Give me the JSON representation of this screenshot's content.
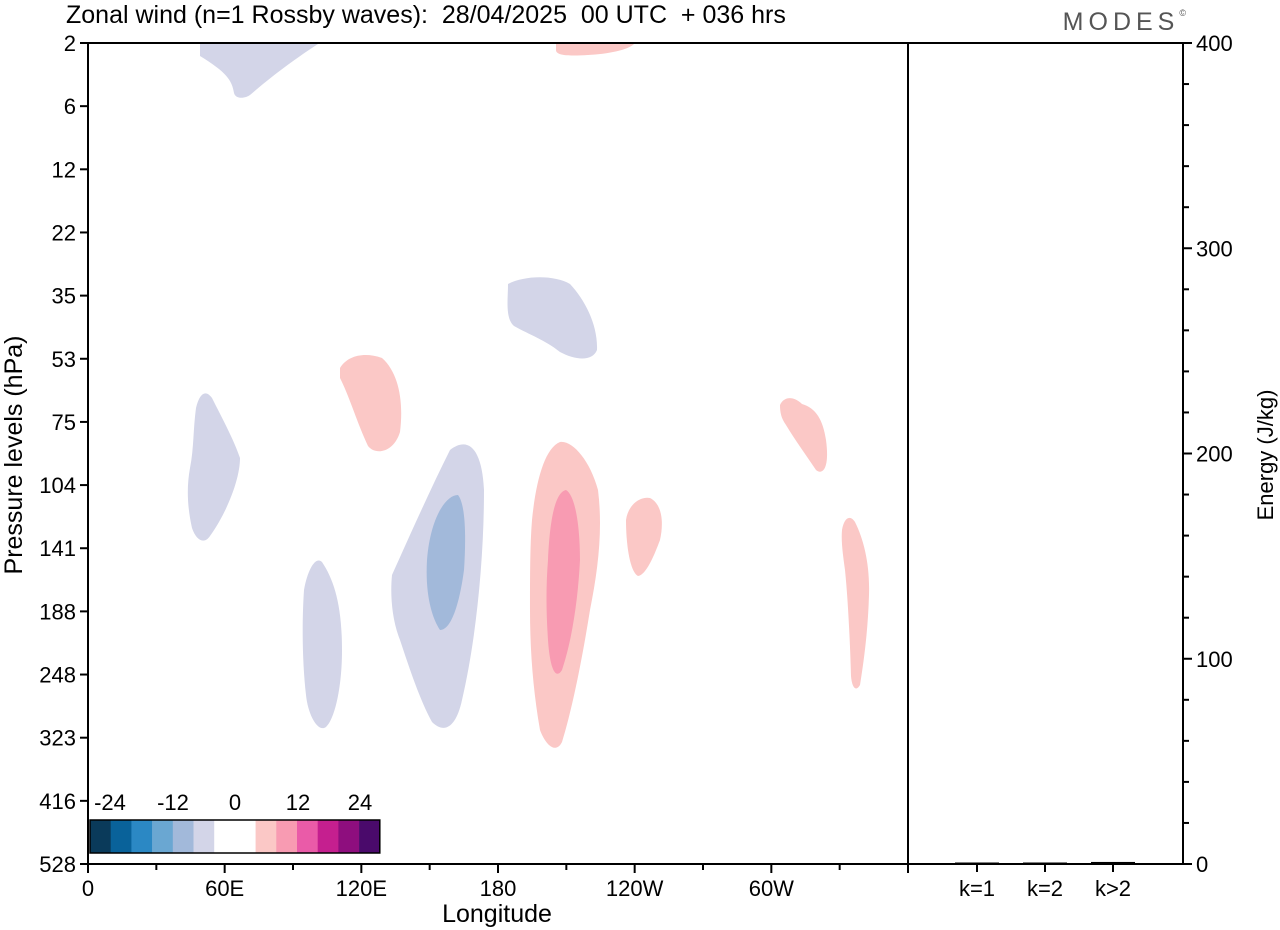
{
  "title": "Zonal wind (n=1 Rossby waves):  28/04/2025  00 UTC  + 036 hrs",
  "brand": "MODES",
  "chart_data": {
    "type": "heatmap",
    "xlabel": "Longitude",
    "ylabel": "Pressure levels (hPa)",
    "x_ticks": [
      "0",
      "60E",
      "120E",
      "180",
      "120W",
      "60W"
    ],
    "y_ticks": [
      "2",
      "6",
      "12",
      "22",
      "35",
      "53",
      "75",
      "104",
      "141",
      "188",
      "248",
      "323",
      "416",
      "528"
    ],
    "colorbar": {
      "labels": [
        "-24",
        "-12",
        "0",
        "12",
        "24"
      ],
      "colors": [
        "#0a3a5a",
        "#09629a",
        "#2b88c4",
        "#6aa7d2",
        "#a2b9da",
        "#d3d5e8",
        "#ffffff",
        "#ffffff",
        "#fbc8c6",
        "#f89bb2",
        "#ea5ba8",
        "#c51f8f",
        "#8e0e7e",
        "#4a0a6b"
      ]
    },
    "contours": [
      {
        "level": "neg-light",
        "color": "#d3d5e8",
        "lon_center": 67,
        "hPa_center": 3.5
      },
      {
        "level": "neg-light",
        "color": "#d3d5e8",
        "lon_center": 190,
        "hPa_center": 40
      },
      {
        "level": "neg-light",
        "color": "#d3d5e8",
        "lon_center": 50,
        "hPa_center": 110
      },
      {
        "level": "neg-light",
        "color": "#d3d5e8",
        "lon_center": 105,
        "hPa_center": 210
      },
      {
        "level": "neg-light",
        "color": "#d3d5e8",
        "lon_center": 158,
        "hPa_center": 160
      },
      {
        "level": "neg-mid",
        "color": "#a2b9da",
        "lon_center": 157,
        "hPa_center": 150
      },
      {
        "level": "pos-light",
        "color": "#fbc8c6",
        "lon_center": 212,
        "hPa_center": 2
      },
      {
        "level": "pos-light",
        "color": "#fbc8c6",
        "lon_center": 118,
        "hPa_center": 68
      },
      {
        "level": "pos-light",
        "color": "#fbc8c6",
        "lon_center": 207,
        "hPa_center": 170
      },
      {
        "level": "pos-mid",
        "color": "#f89bb2",
        "lon_center": 208,
        "hPa_center": 160
      },
      {
        "level": "pos-light",
        "color": "#fbc8c6",
        "lon_center": 237,
        "hPa_center": 135
      },
      {
        "level": "pos-light",
        "color": "#fbc8c6",
        "lon_center": 317,
        "hPa_center": 85
      },
      {
        "level": "pos-light",
        "color": "#fbc8c6",
        "lon_center": 340,
        "hPa_center": 185
      }
    ],
    "energy_panel": {
      "ylabel": "Energy (J/kg)",
      "ylim": [
        0,
        400
      ],
      "y_ticks": [
        "0",
        "100",
        "200",
        "300",
        "400"
      ],
      "categories": [
        "k=1",
        "k=2",
        "k>2"
      ],
      "values": [
        0.5,
        0.3,
        1
      ]
    }
  }
}
